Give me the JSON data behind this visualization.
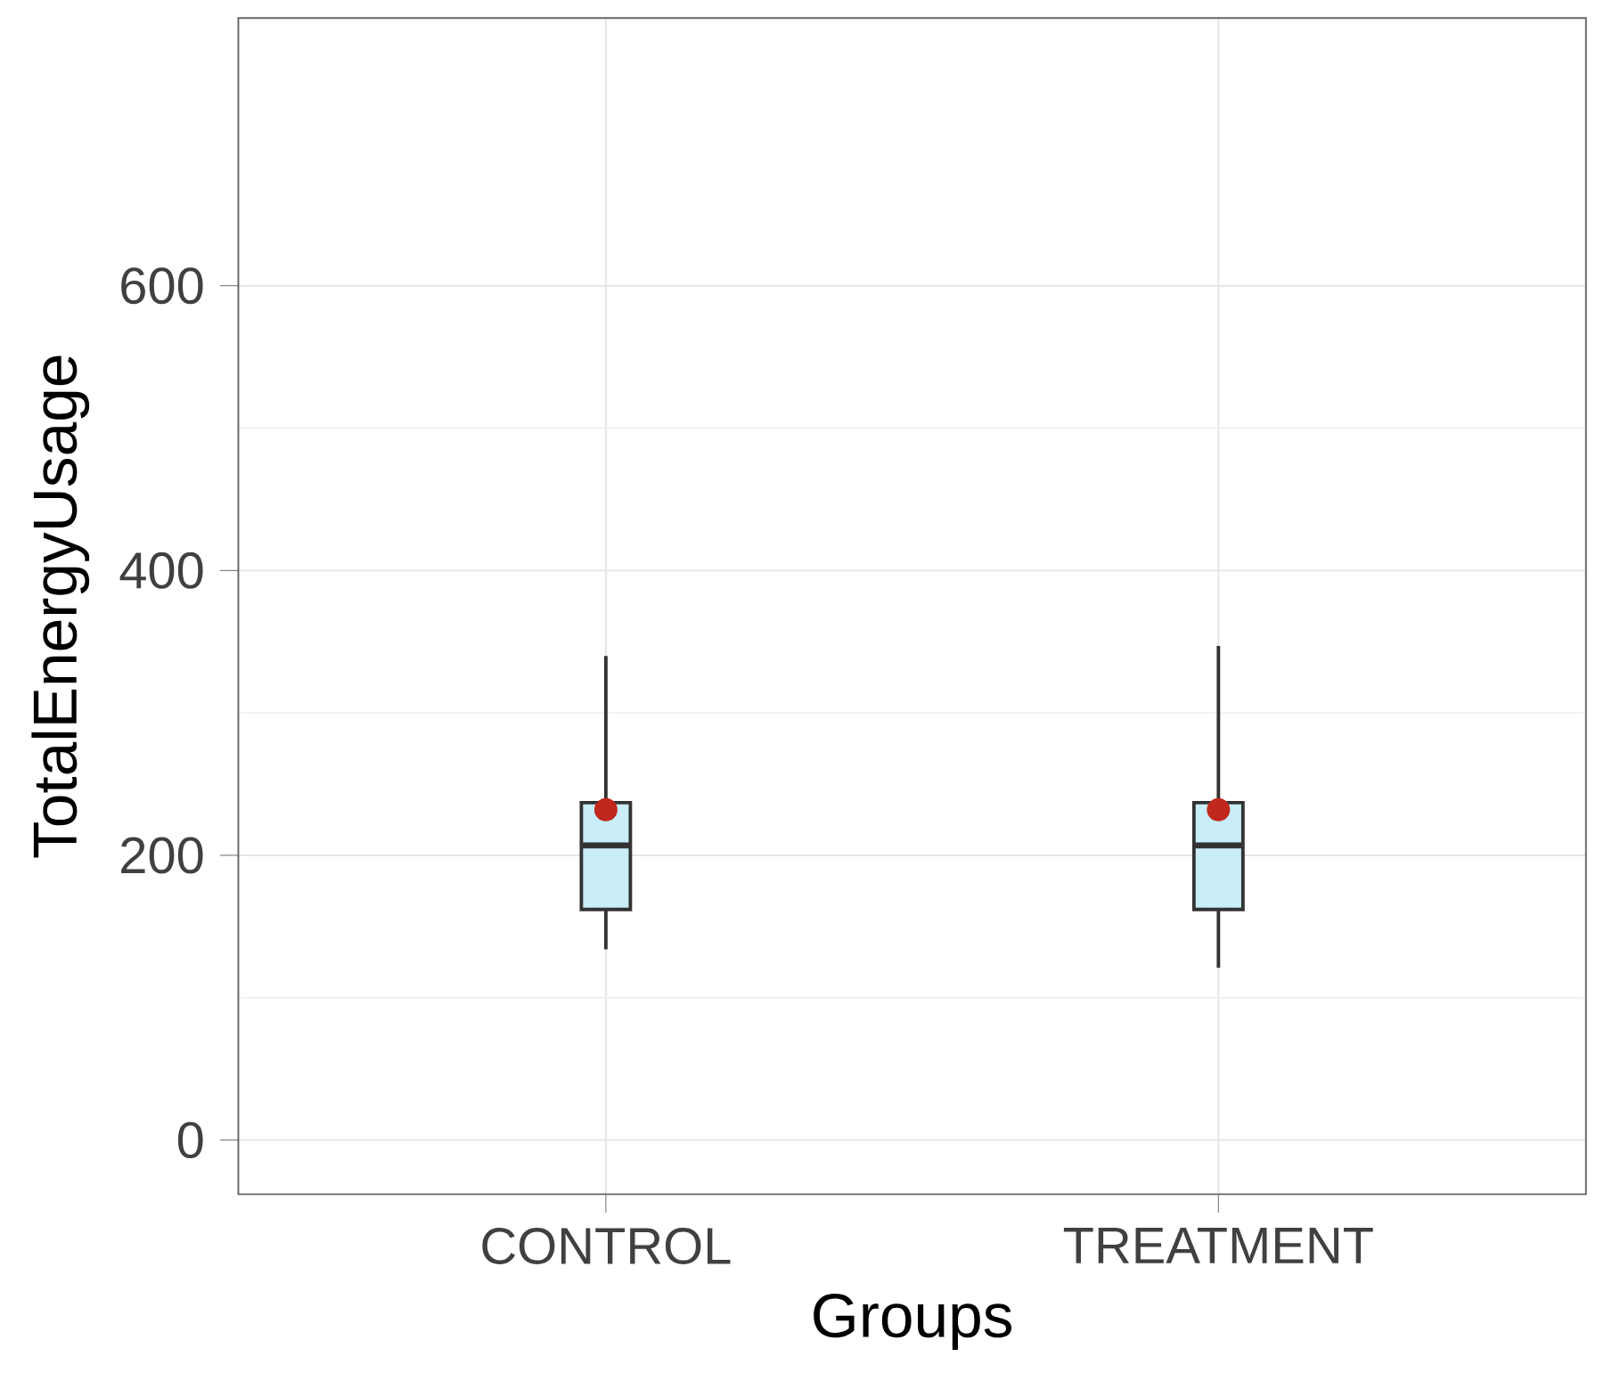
{
  "chart_data": {
    "type": "box",
    "xlabel": "Groups",
    "ylabel": "TotalEnergyUsage",
    "categories": [
      "CONTROL",
      "TREATMENT"
    ],
    "color": "#c9edf9",
    "boxes": [
      {
        "low": 134,
        "q1": 162,
        "median": 207,
        "q3": 237,
        "high": 340,
        "mean": 232
      },
      {
        "low": 121,
        "q1": 162,
        "median": 207,
        "q3": 237,
        "high": 347,
        "mean": 232
      }
    ],
    "ylim": [
      -38,
      788
    ],
    "yticks": [
      0,
      200,
      400,
      600
    ],
    "grid": true
  }
}
